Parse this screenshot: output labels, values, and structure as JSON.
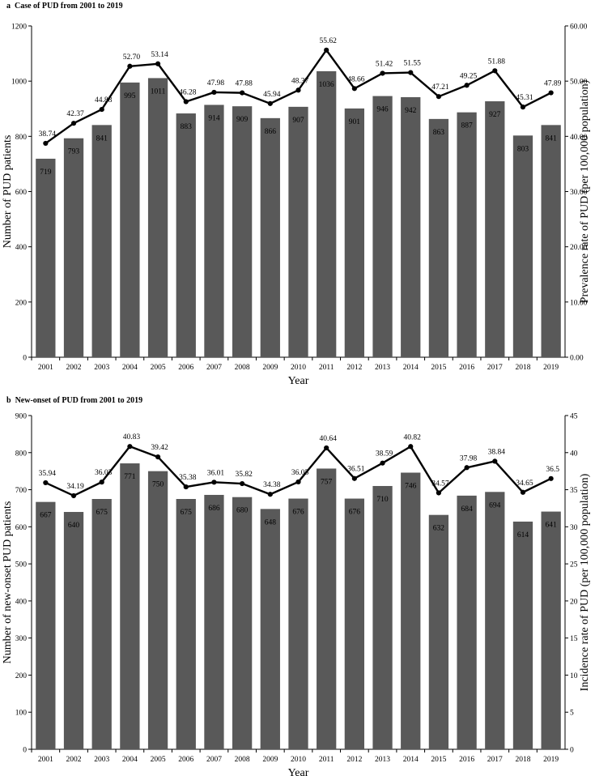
{
  "chart_data": [
    {
      "panel": "a",
      "type": "bar",
      "title": "Case of PUD from 2001 to 2019",
      "categories": [
        "2001",
        "2002",
        "2003",
        "2004",
        "2005",
        "2006",
        "2007",
        "2008",
        "2009",
        "2010",
        "2011",
        "2012",
        "2013",
        "2014",
        "2015",
        "2016",
        "2017",
        "2018",
        "2019"
      ],
      "series": [
        {
          "values": [
            719,
            793,
            841,
            995,
            1011,
            883,
            914,
            909,
            866,
            907,
            1036,
            901,
            946,
            942,
            863,
            887,
            927,
            803,
            841
          ],
          "type": "bar",
          "axis": "left",
          "color": "#595959"
        },
        {
          "values": [
            38.74,
            42.37,
            44.88,
            52.7,
            53.14,
            46.28,
            47.98,
            47.88,
            45.94,
            48.37,
            55.62,
            48.66,
            51.42,
            51.55,
            47.21,
            49.25,
            51.88,
            45.31,
            47.89
          ],
          "labels": [
            "38.74",
            "42.37",
            "44.88",
            "52.70",
            "53.14",
            "46.28",
            "47.98",
            "47.88",
            "45.94",
            "48.37",
            "55.62",
            "48.66",
            "51.42",
            "51.55",
            "47.21",
            "49.25",
            "51.88",
            "45.31",
            "47.89"
          ],
          "type": "line",
          "axis": "right",
          "color": "#000000"
        }
      ],
      "xlabel": "Year",
      "ylabel": "Number of PUD patients",
      "y2label": "Prevalence rate of PUD (per 100,000 population)",
      "ylim": [
        0,
        1200
      ],
      "yticks": [
        "0",
        "200",
        "400",
        "600",
        "800",
        "1000",
        "1200"
      ],
      "y2lim": [
        0,
        60
      ],
      "y2ticks": [
        "0.00",
        "10.00",
        "20.00",
        "30.00",
        "40.00",
        "50.00",
        "60.00"
      ],
      "grid": false,
      "legend": "none"
    },
    {
      "panel": "b",
      "type": "bar",
      "title": "New-onset of PUD from 2001 to 2019",
      "categories": [
        "2001",
        "2002",
        "2003",
        "2004",
        "2005",
        "2006",
        "2007",
        "2008",
        "2009",
        "2010",
        "2011",
        "2012",
        "2013",
        "2014",
        "2015",
        "2016",
        "2017",
        "2018",
        "2019"
      ],
      "series": [
        {
          "values": [
            667,
            640,
            675,
            771,
            750,
            675,
            686,
            680,
            648,
            676,
            757,
            676,
            710,
            746,
            632,
            684,
            694,
            614,
            641
          ],
          "type": "bar",
          "axis": "left",
          "color": "#595959"
        },
        {
          "values": [
            35.94,
            34.19,
            36.03,
            40.83,
            39.42,
            35.38,
            36.01,
            35.82,
            34.38,
            36.05,
            40.64,
            36.51,
            38.59,
            40.82,
            34.57,
            37.98,
            38.84,
            34.65,
            36.5
          ],
          "labels": [
            "35.94",
            "34.19",
            "36.03",
            "40.83",
            "39.42",
            "35.38",
            "36.01",
            "35.82",
            "34.38",
            "36.05",
            "40.64",
            "36.51",
            "38.59",
            "40.82",
            "34.57",
            "37.98",
            "38.84",
            "34.65",
            "36.5"
          ],
          "type": "line",
          "axis": "right",
          "color": "#000000"
        }
      ],
      "xlabel": "Year",
      "ylabel": "Number of new-onset  PUD patients",
      "y2label": "Incidence rate of PUD (per 100,000 population)",
      "ylim": [
        0,
        900
      ],
      "yticks": [
        "0",
        "100",
        "200",
        "300",
        "400",
        "500",
        "600",
        "700",
        "800",
        "900"
      ],
      "y2lim": [
        0,
        45
      ],
      "y2ticks": [
        "0",
        "5",
        "10",
        "15",
        "20",
        "25",
        "30",
        "35",
        "40",
        "45"
      ],
      "grid": false,
      "legend": "none"
    }
  ],
  "labels": {
    "panel_a": "a",
    "panel_b": "b"
  }
}
